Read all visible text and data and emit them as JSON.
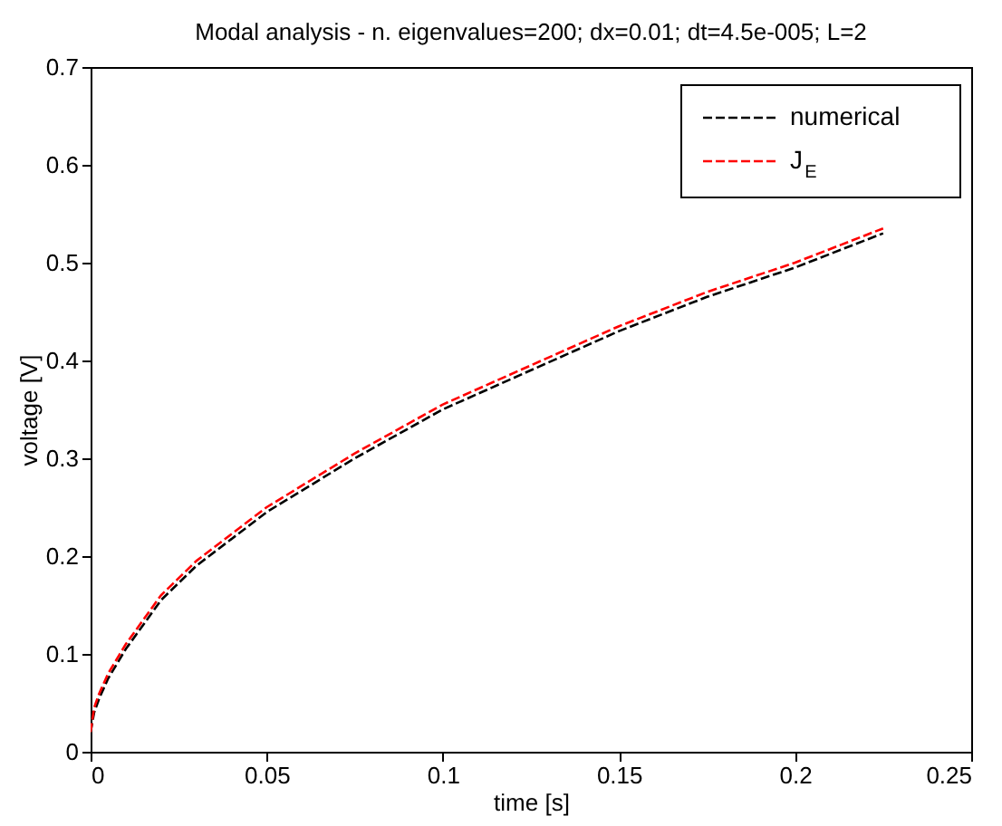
{
  "chart_data": {
    "type": "line",
    "title": "Modal analysis - n. eigenvalues=200; dx=0.01; dt=4.5e-005; L=2",
    "xlabel": "time [s]",
    "ylabel": "voltage [V]",
    "x": [
      0,
      0.001,
      0.0025,
      0.005,
      0.01,
      0.02,
      0.03,
      0.05,
      0.075,
      0.1,
      0.125,
      0.15,
      0.175,
      0.2,
      0.225
    ],
    "series": [
      {
        "name": "numerical",
        "color": "#000000",
        "values": [
          0.02,
          0.04,
          0.055,
          0.075,
          0.105,
          0.155,
          0.19,
          0.245,
          0.3,
          0.35,
          0.39,
          0.43,
          0.465,
          0.495,
          0.53
        ]
      },
      {
        "name": "J$_{E}$",
        "color": "#ff0000",
        "values": [
          0.02,
          0.045,
          0.06,
          0.08,
          0.11,
          0.16,
          0.195,
          0.25,
          0.305,
          0.355,
          0.395,
          0.435,
          0.47,
          0.5,
          0.535
        ]
      }
    ],
    "xlim": [
      0,
      0.25
    ],
    "xticks": [
      0,
      0.05,
      0.1,
      0.15,
      0.2,
      0.25
    ],
    "ylim": [
      0,
      0.7
    ],
    "yticks": [
      0,
      0.1,
      0.2,
      0.3,
      0.4,
      0.5,
      0.6,
      0.7
    ],
    "line_style": "dashed",
    "marker": "none",
    "grid": false,
    "legend": "top right"
  }
}
